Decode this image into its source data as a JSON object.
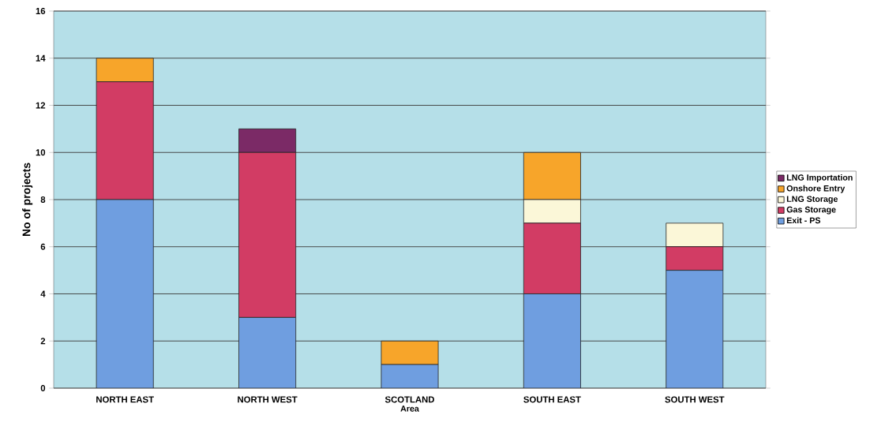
{
  "chart_data": {
    "type": "bar",
    "stacked": true,
    "xlabel": "Area",
    "ylabel": "No of projects",
    "categories": [
      "NORTH EAST",
      "NORTH WEST",
      "SCOTLAND",
      "SOUTH EAST",
      "SOUTH WEST"
    ],
    "series": [
      {
        "name": "Exit - PS",
        "color": "#6f9ee0",
        "values": [
          8,
          3,
          1,
          4,
          5
        ]
      },
      {
        "name": "Gas Storage",
        "color": "#d23c64",
        "values": [
          5,
          7,
          0,
          3,
          1
        ]
      },
      {
        "name": "LNG Storage",
        "color": "#fbf7d8",
        "values": [
          0,
          0,
          0,
          1,
          1
        ]
      },
      {
        "name": "Onshore Entry",
        "color": "#f7a52a",
        "values": [
          1,
          0,
          1,
          2,
          0
        ]
      },
      {
        "name": "LNG Importation",
        "color": "#7b2a66",
        "values": [
          0,
          1,
          0,
          0,
          0
        ]
      }
    ],
    "ylim": [
      0,
      16
    ],
    "yticks": [
      0,
      2,
      4,
      6,
      8,
      10,
      12,
      14,
      16
    ],
    "grid": "y",
    "legend": "right"
  }
}
